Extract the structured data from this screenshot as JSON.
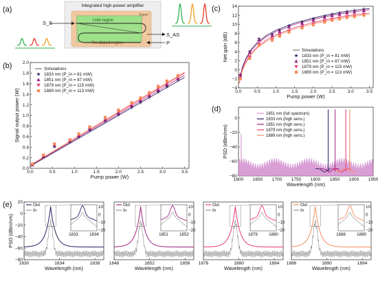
{
  "colors": {
    "c1833": "#2a1a5e",
    "c1851": "#a0207e",
    "c1879": "#e8366d",
    "c1889": "#f48a5a",
    "grey": "#8a8a8a",
    "sim": "#333333"
  },
  "panel_a": {
    "label": "(a)",
    "title": "Integrated high-power amplifier",
    "taper": "Taper",
    "lma": "LMA region",
    "tm": "Tm-doped region",
    "ss": "S_S",
    "sas": "S_AS",
    "p": "P",
    "pulse_colors": [
      "#2bb24c",
      "#e83a2a",
      "#f0a020"
    ],
    "out_colors": [
      "#2bb24c",
      "#f0a020",
      "#e83a2a"
    ]
  },
  "chart_data": [
    {
      "id": "b",
      "type": "scatter",
      "label": "(b)",
      "xlabel": "Pump power (W)",
      "ylabel": "Signal output power (W)",
      "xlim": [
        0,
        3.6
      ],
      "ylim": [
        0,
        2.0
      ],
      "xticks": [
        "0.0",
        "0.5",
        "1.0",
        "1.5",
        "2.0",
        "2.5",
        "3.0",
        "3.5"
      ],
      "yticks": [
        "0.0",
        "0.2",
        "0.4",
        "0.6",
        "0.8",
        "1.0",
        "1.2",
        "1.4",
        "1.6",
        "1.8",
        "2.0"
      ],
      "legend": {
        "title": "Simulations",
        "entries": [
          "1833 nm (P_in = 81 mW)",
          "1851 nm (P_in = 87 mW)",
          "1879 nm (P_in = 115 mW)",
          "1889 nm (P_in = 113 mW)"
        ]
      },
      "simulations": [
        {
          "name": "1833 nm",
          "x": [
            0,
            3.5
          ],
          "y": [
            0.04,
            1.72
          ]
        },
        {
          "name": "1851 nm",
          "x": [
            0,
            3.5
          ],
          "y": [
            0.05,
            1.76
          ]
        },
        {
          "name": "1879 nm",
          "x": [
            0,
            3.5
          ],
          "y": [
            0.06,
            1.8
          ]
        },
        {
          "name": "1889 nm",
          "x": [
            0,
            3.5
          ],
          "y": [
            0.06,
            1.82
          ]
        }
      ],
      "series": [
        {
          "name": "1833 nm",
          "x": [
            0.05,
            0.3,
            0.55,
            0.9,
            1.1,
            1.35,
            1.7,
            2.0,
            2.3,
            2.5,
            2.7,
            2.9,
            3.1,
            3.35
          ],
          "y": [
            0.06,
            0.22,
            0.41,
            0.5,
            0.6,
            0.73,
            0.9,
            1.02,
            1.16,
            1.25,
            1.35,
            1.45,
            1.55,
            1.68
          ]
        },
        {
          "name": "1851 nm",
          "x": [
            0.05,
            0.3,
            0.55,
            0.9,
            1.1,
            1.35,
            1.7,
            2.0,
            2.3,
            2.5,
            2.7,
            2.9,
            3.1,
            3.35
          ],
          "y": [
            0.07,
            0.23,
            0.44,
            0.52,
            0.62,
            0.76,
            0.92,
            1.05,
            1.19,
            1.29,
            1.38,
            1.49,
            1.59,
            1.7
          ]
        },
        {
          "name": "1879 nm",
          "x": [
            0.05,
            0.3,
            0.55,
            0.9,
            1.1,
            1.35,
            1.7,
            2.0,
            2.3,
            2.5,
            2.7,
            2.9,
            3.1,
            3.35
          ],
          "y": [
            0.08,
            0.24,
            0.45,
            0.53,
            0.64,
            0.77,
            0.95,
            1.08,
            1.22,
            1.31,
            1.41,
            1.52,
            1.62,
            1.73
          ]
        },
        {
          "name": "1889 nm",
          "x": [
            0.05,
            0.3,
            0.55,
            0.9,
            1.1,
            1.35,
            1.7,
            2.0,
            2.3,
            2.5,
            2.7,
            2.9,
            3.1,
            3.35
          ],
          "y": [
            0.08,
            0.25,
            0.46,
            0.54,
            0.65,
            0.78,
            0.96,
            1.1,
            1.24,
            1.33,
            1.43,
            1.55,
            1.65,
            1.75
          ]
        }
      ]
    },
    {
      "id": "c",
      "type": "scatter",
      "label": "(c)",
      "xlabel": "Pump power (W)",
      "ylabel": "Net gain (dB)",
      "xlim": [
        0,
        3.6
      ],
      "ylim": [
        -4,
        14
      ],
      "xticks": [
        "0.0",
        "0.5",
        "1.0",
        "1.5",
        "2.0",
        "2.5",
        "3.0",
        "3.5"
      ],
      "yticks": [
        "−4",
        "−2",
        "0",
        "2",
        "4",
        "6",
        "8",
        "10",
        "12",
        "14"
      ],
      "legend": {
        "title": "Simulations",
        "entries": [
          "1833 nm (P_in = 81 mW)",
          "1851 nm (P_in = 87 mW)",
          "1879 nm (P_in = 115 mW)",
          "1889 nm (P_in = 113 mW)"
        ]
      },
      "simulations": [
        {
          "name": "1833 nm",
          "x": [
            0.02,
            0.1,
            0.2,
            0.35,
            0.5,
            0.75,
            1.0,
            1.5,
            2.0,
            2.5,
            3.0,
            3.5
          ],
          "y": [
            -3.0,
            0.5,
            2.5,
            4.6,
            6.0,
            7.6,
            8.7,
            10.3,
            11.4,
            12.3,
            13.0,
            13.5
          ]
        },
        {
          "name": "1851 nm",
          "x": [
            0.02,
            0.1,
            0.2,
            0.35,
            0.5,
            0.75,
            1.0,
            1.5,
            2.0,
            2.5,
            3.0,
            3.5
          ],
          "y": [
            -3.0,
            0.3,
            2.3,
            4.3,
            5.7,
            7.3,
            8.4,
            10.0,
            11.1,
            12.0,
            12.7,
            13.2
          ]
        },
        {
          "name": "1879 nm",
          "x": [
            0.02,
            0.1,
            0.2,
            0.35,
            0.5,
            0.75,
            1.0,
            1.5,
            2.0,
            2.5,
            3.0,
            3.5
          ],
          "y": [
            -3.0,
            -0.1,
            1.8,
            3.7,
            5.0,
            6.6,
            7.7,
            9.3,
            10.4,
            11.3,
            12.0,
            12.5
          ]
        },
        {
          "name": "1889 nm",
          "x": [
            0.02,
            0.1,
            0.2,
            0.35,
            0.5,
            0.75,
            1.0,
            1.5,
            2.0,
            2.5,
            3.0,
            3.5
          ],
          "y": [
            -3.0,
            -0.3,
            1.6,
            3.5,
            4.8,
            6.3,
            7.4,
            9.0,
            10.1,
            11.0,
            11.7,
            12.2
          ]
        }
      ],
      "series": [
        {
          "name": "1833 nm",
          "x": [
            0.05,
            0.3,
            0.55,
            0.9,
            1.1,
            1.35,
            1.7,
            2.0,
            2.3,
            2.5,
            2.7,
            2.9,
            3.1,
            3.35
          ],
          "y": [
            -1.2,
            4.0,
            6.8,
            7.8,
            8.7,
            9.7,
            10.5,
            11.2,
            11.8,
            12.2,
            12.5,
            12.8,
            13.0,
            13.3
          ]
        },
        {
          "name": "1851 nm",
          "x": [
            0.05,
            0.3,
            0.55,
            0.9,
            1.1,
            1.35,
            1.7,
            2.0,
            2.3,
            2.5,
            2.7,
            2.9,
            3.1,
            3.35
          ],
          "y": [
            -1.0,
            3.8,
            6.6,
            7.5,
            8.4,
            9.4,
            10.2,
            10.9,
            11.5,
            11.9,
            12.2,
            12.5,
            12.7,
            13.0
          ]
        },
        {
          "name": "1879 nm",
          "x": [
            0.05,
            0.3,
            0.55,
            0.9,
            1.1,
            1.35,
            1.7,
            2.0,
            2.3,
            2.5,
            2.7,
            2.9,
            3.1,
            3.35
          ],
          "y": [
            -1.8,
            2.8,
            5.6,
            6.7,
            7.6,
            8.5,
            9.4,
            10.1,
            10.7,
            11.1,
            11.4,
            11.7,
            11.9,
            12.2
          ]
        },
        {
          "name": "1889 nm",
          "x": [
            0.05,
            0.3,
            0.55,
            0.9,
            1.1,
            1.35,
            1.7,
            2.0,
            2.3,
            2.5,
            2.7,
            2.9,
            3.1,
            3.35
          ],
          "y": [
            -2.0,
            2.5,
            5.4,
            6.5,
            7.4,
            8.3,
            9.2,
            9.9,
            10.5,
            10.9,
            11.2,
            11.5,
            11.7,
            12.0
          ]
        }
      ]
    },
    {
      "id": "d",
      "type": "line",
      "label": "(d)",
      "xlabel": "Wavelength (nm)",
      "ylabel": "PSD (dBm/nm)",
      "xlim": [
        1600,
        1950
      ],
      "ylim": [
        -80,
        15
      ],
      "xticks": [
        "1600",
        "1650",
        "1700",
        "1750",
        "1800",
        "1850",
        "1900",
        "1950"
      ],
      "yticks": [
        "−80",
        "−60",
        "−40",
        "−20",
        "0"
      ],
      "legend": [
        "1851 nm (full spectrum)",
        "1833 nm (high sens.)",
        "1851 nm (high sens.)",
        "1879 nm (high sens.)",
        "1889 nm (high sens.)"
      ],
      "peaks_nm": [
        1833,
        1851,
        1879,
        1889
      ]
    },
    {
      "id": "e",
      "type": "line",
      "label": "(e)",
      "ylabel": "PSD (dBm/nm)",
      "ylim": [
        -80,
        20
      ],
      "yticks": [
        "−80",
        "−60",
        "−40",
        "−20",
        "0",
        "20"
      ],
      "legend": [
        "Out",
        "In"
      ],
      "panels": [
        {
          "center": 1833,
          "xlabel": "Wavelength (nm)",
          "xlim": [
            1830,
            1839
          ],
          "xticks": [
            "1830",
            "1834",
            "1838"
          ],
          "inset_xticks": [
            "1833",
            "1834"
          ],
          "inset_yticks": [
            "10",
            "0",
            "−10",
            "−20"
          ]
        },
        {
          "center": 1851,
          "xlabel": "Wavelength (nm)",
          "xlim": [
            1848,
            1857
          ],
          "xticks": [
            "1848",
            "1852",
            "1856"
          ],
          "inset_xticks": [
            "1851",
            "1852"
          ],
          "inset_yticks": [
            "10",
            "0",
            "−10",
            "−20"
          ]
        },
        {
          "center": 1879.6,
          "xlabel": "Wavelength (nm)",
          "xlim": [
            1876,
            1885
          ],
          "xticks": [
            "1876",
            "1880",
            "1884"
          ],
          "inset_xticks": [
            "1879",
            "1880"
          ],
          "inset_yticks": [
            "10",
            "0",
            "−10",
            "−20"
          ]
        },
        {
          "center": 1888.7,
          "xlabel": "Wavelength (nm)",
          "xlim": [
            1886,
            1895
          ],
          "xticks": [
            "1886",
            "1890",
            "1894"
          ],
          "inset_xticks": [
            "1888",
            "1889"
          ],
          "inset_yticks": [
            "10",
            "0",
            "−10",
            "−20"
          ]
        }
      ]
    }
  ]
}
